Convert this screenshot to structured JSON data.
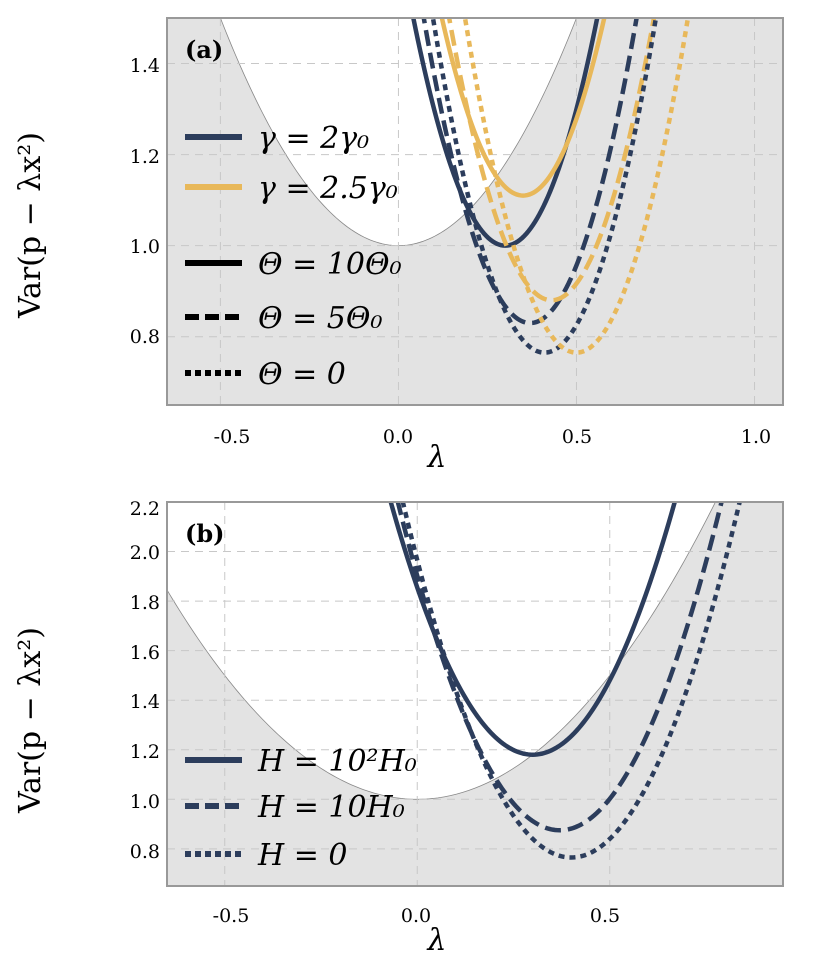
{
  "colors": {
    "navy": "#2c3d5c",
    "gold": "#e8b85a",
    "shade": "#e3e3e3",
    "frame": "#999999"
  },
  "chart_data": [
    {
      "type": "line",
      "panel_label": "(a)",
      "xlabel": "λ",
      "ylabel": "Var(p − λx²)",
      "xlim": [
        -0.65,
        1.08
      ],
      "ylim": [
        0.65,
        1.5
      ],
      "xticks": [
        "-0.5",
        "0.0",
        "0.5",
        "1.0"
      ],
      "yticks": [
        "0.8",
        "1.0",
        "1.2",
        "1.4"
      ],
      "grid": true,
      "legend_position": "left",
      "boundary": {
        "description": "shaded region outside parabola y = 1 + 2λ²",
        "min_x": 0.0,
        "min_y": 1.0
      },
      "legend_color": [
        {
          "label": "γ = 2γ₀",
          "color": "navy"
        },
        {
          "label": "γ = 2.5γ₀",
          "color": "gold"
        }
      ],
      "legend_style": [
        {
          "label": "Θ = 10Θ₀",
          "style": "solid"
        },
        {
          "label": "Θ = 5Θ₀",
          "style": "dashed"
        },
        {
          "label": "Θ = 0",
          "style": "dotted"
        }
      ],
      "series": [
        {
          "color": "navy",
          "style": "solid",
          "min_x": 0.3,
          "min_y": 1.0
        },
        {
          "color": "gold",
          "style": "solid",
          "min_x": 0.35,
          "min_y": 1.11
        },
        {
          "color": "navy",
          "style": "dashed",
          "min_x": 0.37,
          "min_y": 0.83
        },
        {
          "color": "gold",
          "style": "dashed",
          "min_x": 0.43,
          "min_y": 0.88
        },
        {
          "color": "navy",
          "style": "dotted",
          "min_x": 0.41,
          "min_y": 0.765
        },
        {
          "color": "gold",
          "style": "dotted",
          "min_x": 0.5,
          "min_y": 0.765
        }
      ]
    },
    {
      "type": "line",
      "panel_label": "(b)",
      "xlabel": "λ",
      "ylabel": "Var(p − λx²)",
      "xlim": [
        -0.65,
        0.95
      ],
      "ylim": [
        0.65,
        2.2
      ],
      "xticks": [
        "-0.5",
        "0.0",
        "0.5"
      ],
      "yticks": [
        "0.8",
        "1.0",
        "1.2",
        "1.4",
        "1.6",
        "1.8",
        "2.0",
        "2.2"
      ],
      "grid": true,
      "legend_position": "bottom-left",
      "boundary": {
        "description": "shaded region outside parabola y = 1 + 2λ²",
        "min_x": 0.0,
        "min_y": 1.0
      },
      "legend_style": [
        {
          "label": "H = 10²H₀",
          "style": "solid"
        },
        {
          "label": "H = 10H₀",
          "style": "dashed"
        },
        {
          "label": "H = 0",
          "style": "dotted"
        }
      ],
      "series": [
        {
          "color": "navy",
          "style": "solid",
          "min_x": 0.3,
          "min_y": 1.18
        },
        {
          "color": "navy",
          "style": "dashed",
          "min_x": 0.37,
          "min_y": 0.875
        },
        {
          "color": "navy",
          "style": "dotted",
          "min_x": 0.4,
          "min_y": 0.765
        }
      ]
    }
  ]
}
